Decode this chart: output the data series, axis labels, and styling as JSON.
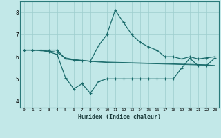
{
  "xlabel": "Humidex (Indice chaleur)",
  "ylabel": "",
  "bg_color": "#c2e8e8",
  "grid_color": "#9dcece",
  "line_color": "#1a6b6b",
  "xlim": [
    -0.5,
    23.5
  ],
  "ylim": [
    3.7,
    8.5
  ],
  "yticks": [
    4,
    5,
    6,
    7,
    8
  ],
  "xticks": [
    0,
    1,
    2,
    3,
    4,
    5,
    6,
    7,
    8,
    9,
    10,
    11,
    12,
    13,
    14,
    15,
    16,
    17,
    18,
    19,
    20,
    21,
    22,
    23
  ],
  "series1_x": [
    0,
    1,
    2,
    3,
    4,
    5,
    6,
    7,
    8,
    9,
    10,
    11,
    12,
    13,
    14,
    15,
    16,
    17,
    18,
    19,
    20,
    21,
    22,
    23
  ],
  "series1_y": [
    6.3,
    6.3,
    6.3,
    6.3,
    6.3,
    5.9,
    5.85,
    5.82,
    5.8,
    6.5,
    7.0,
    8.1,
    7.55,
    7.0,
    6.65,
    6.45,
    6.3,
    6.0,
    6.0,
    5.9,
    6.0,
    5.9,
    5.95,
    6.0
  ],
  "series2_x": [
    0,
    1,
    2,
    3,
    4,
    5,
    6,
    7,
    8,
    9,
    10,
    11,
    12,
    13,
    14,
    15,
    16,
    17,
    18,
    19,
    20,
    21,
    22,
    23
  ],
  "series2_y": [
    6.3,
    6.3,
    6.3,
    6.25,
    6.2,
    5.95,
    5.88,
    5.84,
    5.8,
    5.78,
    5.76,
    5.75,
    5.74,
    5.73,
    5.72,
    5.71,
    5.7,
    5.69,
    5.68,
    5.67,
    5.66,
    5.65,
    5.64,
    5.6
  ],
  "series3_x": [
    0,
    1,
    2,
    3,
    4,
    5,
    6,
    7,
    8,
    9,
    10,
    11,
    12,
    13,
    14,
    15,
    16,
    17,
    18,
    19,
    20,
    21,
    22,
    23
  ],
  "series3_y": [
    6.3,
    6.3,
    6.28,
    6.25,
    6.2,
    5.92,
    5.86,
    5.82,
    5.79,
    5.76,
    5.74,
    5.73,
    5.72,
    5.71,
    5.7,
    5.69,
    5.68,
    5.67,
    5.66,
    5.65,
    5.64,
    5.63,
    5.62,
    5.6
  ],
  "series4_x": [
    0,
    1,
    2,
    3,
    4,
    5,
    6,
    7,
    8,
    9,
    10,
    11,
    12,
    13,
    14,
    15,
    16,
    17,
    18,
    19,
    20,
    21,
    22,
    23
  ],
  "series4_y": [
    6.3,
    6.3,
    6.28,
    6.22,
    6.1,
    5.05,
    4.55,
    4.78,
    4.35,
    4.88,
    5.0,
    5.0,
    5.0,
    5.0,
    5.0,
    5.0,
    5.0,
    5.0,
    5.0,
    5.48,
    5.93,
    5.6,
    5.6,
    5.93
  ]
}
